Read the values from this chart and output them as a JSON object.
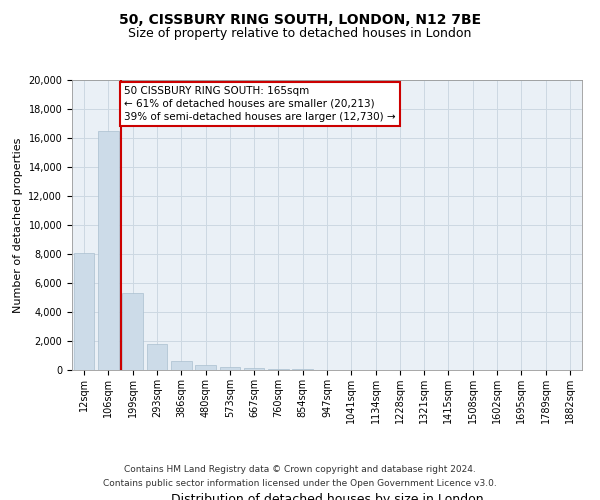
{
  "title": "50, CISSBURY RING SOUTH, LONDON, N12 7BE",
  "subtitle": "Size of property relative to detached houses in London",
  "xlabel": "Distribution of detached houses by size in London",
  "ylabel": "Number of detached properties",
  "categories": [
    "12sqm",
    "106sqm",
    "199sqm",
    "293sqm",
    "386sqm",
    "480sqm",
    "573sqm",
    "667sqm",
    "760sqm",
    "854sqm",
    "947sqm",
    "1041sqm",
    "1134sqm",
    "1228sqm",
    "1321sqm",
    "1415sqm",
    "1508sqm",
    "1602sqm",
    "1695sqm",
    "1789sqm",
    "1882sqm"
  ],
  "values": [
    8100,
    16500,
    5300,
    1800,
    650,
    330,
    175,
    130,
    90,
    80,
    0,
    0,
    0,
    0,
    0,
    0,
    0,
    0,
    0,
    0,
    0
  ],
  "ylim": [
    0,
    20000
  ],
  "yticks": [
    0,
    2000,
    4000,
    6000,
    8000,
    10000,
    12000,
    14000,
    16000,
    18000,
    20000
  ],
  "bar_color": "#ccdbe8",
  "bar_edgecolor": "#aabfcf",
  "grid_color": "#cdd8e2",
  "background_color": "#eaf0f6",
  "vline_x_index": 1.5,
  "vline_color": "#cc0000",
  "annotation_text": "50 CISSBURY RING SOUTH: 165sqm\n← 61% of detached houses are smaller (20,213)\n39% of semi-detached houses are larger (12,730) →",
  "annotation_box_facecolor": "white",
  "annotation_box_edgecolor": "#cc0000",
  "footer": "Contains HM Land Registry data © Crown copyright and database right 2024.\nContains public sector information licensed under the Open Government Licence v3.0.",
  "title_fontsize": 10,
  "subtitle_fontsize": 9,
  "xlabel_fontsize": 9,
  "ylabel_fontsize": 8,
  "tick_fontsize": 7,
  "annot_fontsize": 7.5,
  "footer_fontsize": 6.5
}
